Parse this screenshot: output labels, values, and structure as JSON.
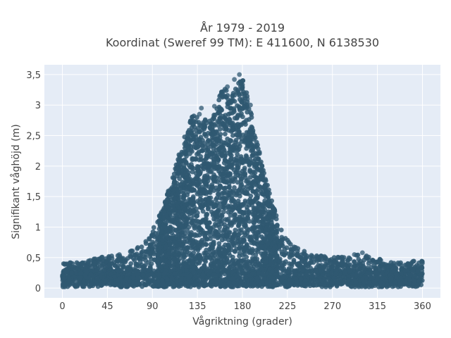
{
  "chart_data": {
    "type": "scatter",
    "title_line1": "År 1979 - 2019",
    "title_line2": "Koordinat (Sweref 99 TM): E 411600, N 6138530",
    "xlabel": "Vågriktning (grader)",
    "ylabel": "Signifikant våghöjd (m)",
    "xlim": [
      -18,
      378
    ],
    "ylim": [
      -0.16,
      3.66
    ],
    "xticks": [
      0,
      45,
      90,
      135,
      180,
      225,
      270,
      315,
      360
    ],
    "xtick_labels": [
      "0",
      "45",
      "90",
      "135",
      "180",
      "225",
      "270",
      "315",
      "360"
    ],
    "yticks": [
      0,
      0.5,
      1,
      1.5,
      2,
      2.5,
      3,
      3.5
    ],
    "ytick_labels": [
      "0",
      "0,5",
      "1",
      "1,5",
      "2",
      "2,5",
      "3",
      "3,5"
    ],
    "marker_color": "#2f5871",
    "background_color": "#e5ecf6",
    "grid": true,
    "envelope": [
      {
        "x": 0,
        "ymax": 0.42
      },
      {
        "x": 20,
        "ymax": 0.42
      },
      {
        "x": 40,
        "ymax": 0.52
      },
      {
        "x": 60,
        "ymax": 0.55
      },
      {
        "x": 80,
        "ymax": 0.7
      },
      {
        "x": 90,
        "ymax": 0.95
      },
      {
        "x": 100,
        "ymax": 1.3
      },
      {
        "x": 110,
        "ymax": 1.8
      },
      {
        "x": 120,
        "ymax": 2.4
      },
      {
        "x": 130,
        "ymax": 2.85
      },
      {
        "x": 140,
        "ymax": 2.75
      },
      {
        "x": 150,
        "ymax": 2.8
      },
      {
        "x": 160,
        "ymax": 3.3
      },
      {
        "x": 170,
        "ymax": 3.2
      },
      {
        "x": 180,
        "ymax": 3.5
      },
      {
        "x": 190,
        "ymax": 2.8
      },
      {
        "x": 200,
        "ymax": 2.0
      },
      {
        "x": 210,
        "ymax": 1.4
      },
      {
        "x": 220,
        "ymax": 0.9
      },
      {
        "x": 230,
        "ymax": 0.7
      },
      {
        "x": 250,
        "ymax": 0.55
      },
      {
        "x": 270,
        "ymax": 0.5
      },
      {
        "x": 300,
        "ymax": 0.55
      },
      {
        "x": 330,
        "ymax": 0.42
      },
      {
        "x": 360,
        "ymax": 0.45
      }
    ],
    "outliers": [
      {
        "x": 177,
        "y": 3.5
      },
      {
        "x": 172,
        "y": 3.42
      },
      {
        "x": 178,
        "y": 3.38
      },
      {
        "x": 165,
        "y": 3.3
      },
      {
        "x": 180,
        "y": 3.3
      },
      {
        "x": 160,
        "y": 3.18
      },
      {
        "x": 170,
        "y": 3.15
      },
      {
        "x": 185,
        "y": 3.1
      },
      {
        "x": 139,
        "y": 2.95
      },
      {
        "x": 137,
        "y": 2.85
      },
      {
        "x": 152,
        "y": 2.98
      },
      {
        "x": 188,
        "y": 3.0
      },
      {
        "x": 300,
        "y": 0.58
      },
      {
        "x": 292,
        "y": 0.55
      },
      {
        "x": 57,
        "y": 0.55
      },
      {
        "x": 262,
        "y": 0.52
      }
    ]
  }
}
